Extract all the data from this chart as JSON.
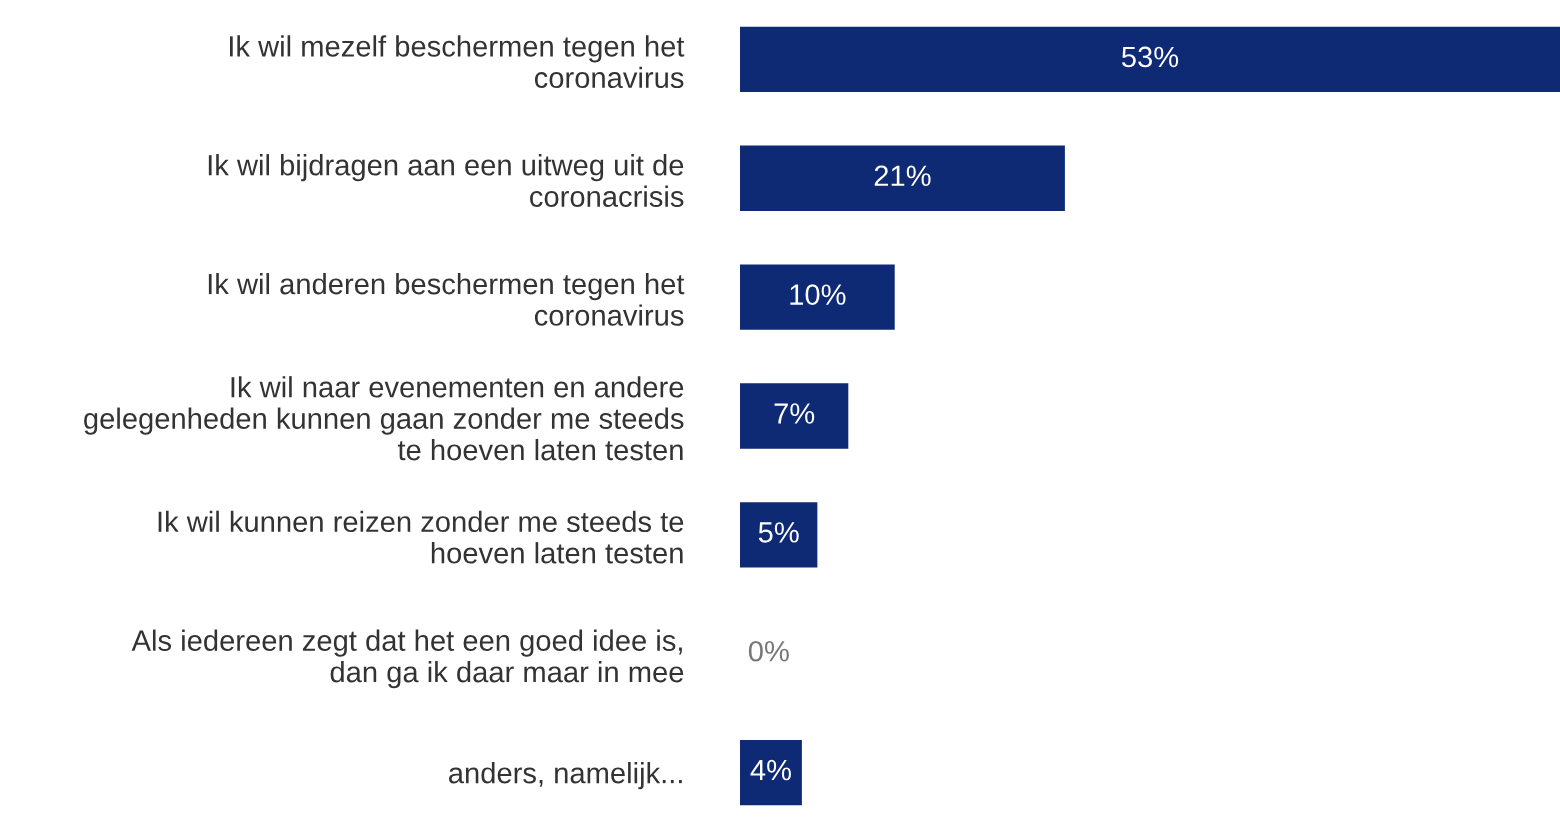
{
  "chart_data": {
    "type": "bar",
    "orientation": "horizontal",
    "categories": [
      "Ik wil mezelf beschermen tegen het\ncoronavirus",
      "Ik wil bijdragen aan een uitweg uit de\ncoronacrisis",
      "Ik wil anderen beschermen tegen het\ncoronavirus",
      "Ik wil naar evenementen en andere\ngelegenheden kunnen gaan zonder me steeds\nte hoeven laten testen",
      "Ik wil kunnen reizen zonder me steeds te\nhoeven laten testen",
      "Als iedereen zegt dat het een goed idee is,\ndan ga ik daar maar in mee",
      "anders, namelijk..."
    ],
    "values": [
      53,
      21,
      10,
      7,
      5,
      0,
      4
    ],
    "value_labels": [
      "53%",
      "21%",
      "10%",
      "7%",
      "5%",
      "0%",
      "4%"
    ],
    "color": "#0f2a75",
    "grid": false,
    "legend": false
  }
}
